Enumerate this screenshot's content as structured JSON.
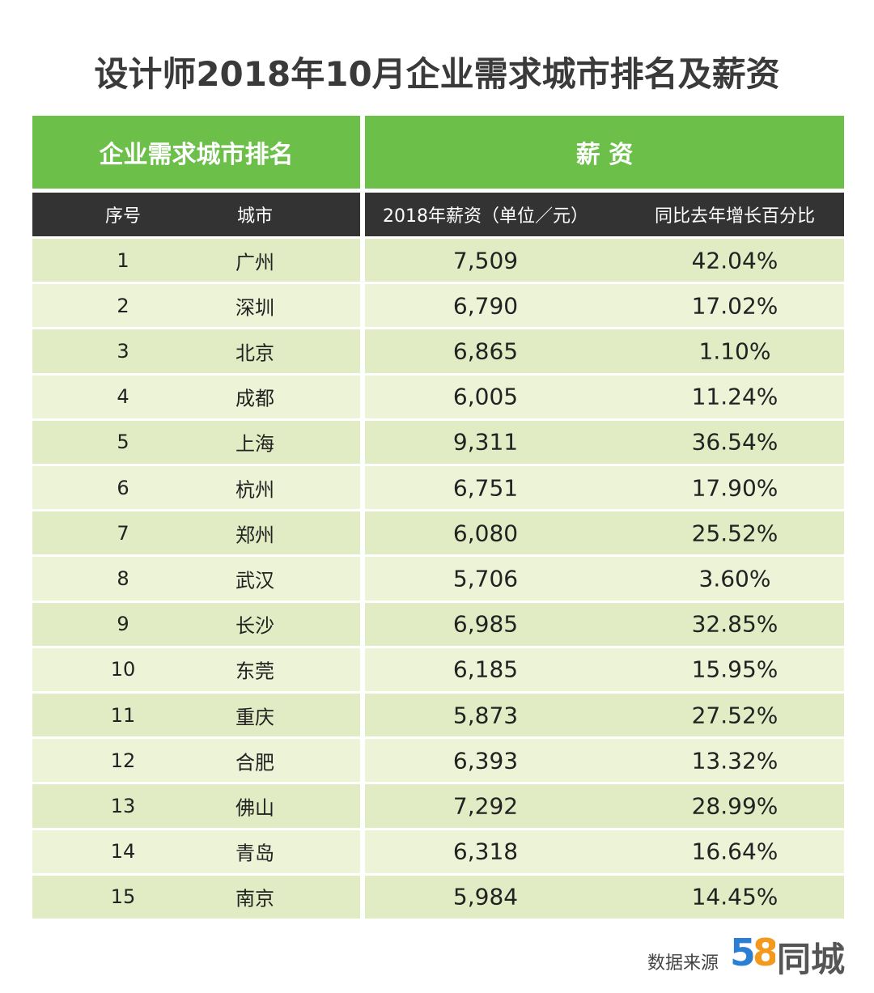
{
  "title": "设计师2018年10月企业需求城市排名及薪资",
  "table": {
    "group_headers": [
      "企业需求城市排名",
      "薪 资"
    ],
    "columns": [
      "序号",
      "城市",
      "2018年薪资（单位／元）",
      "同比去年增长百分比"
    ],
    "rows": [
      [
        "1",
        "广州",
        "7,509",
        "42.04%"
      ],
      [
        "2",
        "深圳",
        "6,790",
        "17.02%"
      ],
      [
        "3",
        "北京",
        "6,865",
        "1.10%"
      ],
      [
        "4",
        "成都",
        "6,005",
        "11.24%"
      ],
      [
        "5",
        "上海",
        "9,311",
        "36.54%"
      ],
      [
        "6",
        "杭州",
        "6,751",
        "17.90%"
      ],
      [
        "7",
        "郑州",
        "6,080",
        "25.52%"
      ],
      [
        "8",
        "武汉",
        "5,706",
        "3.60%"
      ],
      [
        "9",
        "长沙",
        "6,985",
        "32.85%"
      ],
      [
        "10",
        "东莞",
        "6,185",
        "15.95%"
      ],
      [
        "11",
        "重庆",
        "5,873",
        "27.52%"
      ],
      [
        "12",
        "合肥",
        "6,393",
        "13.32%"
      ],
      [
        "13",
        "佛山",
        "7,292",
        "28.99%"
      ],
      [
        "14",
        "青岛",
        "6,318",
        "16.64%"
      ],
      [
        "15",
        "南京",
        "5,984",
        "14.45%"
      ]
    ]
  },
  "footer": {
    "source_label": "数据来源",
    "logo_number": "58",
    "logo_text": "同城"
  }
}
